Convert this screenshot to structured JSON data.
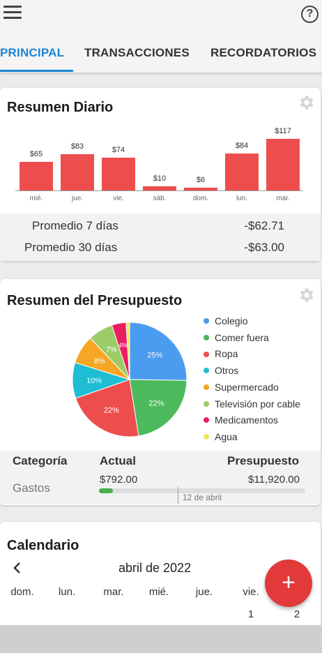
{
  "header": {
    "tabs": [
      {
        "label": "PRINCIPAL",
        "active": true
      },
      {
        "label": "TRANSACCIONES",
        "active": false
      },
      {
        "label": "RECORDATORIOS",
        "active": false
      }
    ],
    "accent_color": "#1a86d6"
  },
  "daily_summary": {
    "title": "Resumen Diario",
    "chart_data": {
      "type": "bar",
      "categories": [
        "mié.",
        "jue.",
        "vie.",
        "sáb.",
        "dom.",
        "lun.",
        "mar."
      ],
      "values": [
        65,
        83,
        74,
        10,
        6,
        84,
        117
      ],
      "value_labels": [
        "$65",
        "$83",
        "$74",
        "$10",
        "$6",
        "$84",
        "$117"
      ],
      "color": "#ee4d4d"
    },
    "averages": [
      {
        "label": "Promedio 7 días",
        "value": "-$62.71"
      },
      {
        "label": "Promedio 30 días",
        "value": "-$63.00"
      }
    ]
  },
  "budget_summary": {
    "title": "Resumen del Presupuesto",
    "chart_data": {
      "type": "pie",
      "slices": [
        {
          "name": "Colegio",
          "percent": 25,
          "label": "25%",
          "color": "#4a9cf0"
        },
        {
          "name": "Comer fuera",
          "percent": 22,
          "label": "22%",
          "color": "#4cba5c"
        },
        {
          "name": "Ropa",
          "percent": 22,
          "label": "22%",
          "color": "#ee4d4d"
        },
        {
          "name": "Otros",
          "percent": 10,
          "label": "10%",
          "color": "#1fbdd3"
        },
        {
          "name": "Supermercado",
          "percent": 8,
          "label": "8%",
          "color": "#f6a623"
        },
        {
          "name": "Televisión por cable",
          "percent": 7,
          "label": "7%",
          "color": "#9ccc65"
        },
        {
          "name": "Medicamentos",
          "percent": 4,
          "label": "4%",
          "color": "#e91e63"
        },
        {
          "name": "Agua",
          "percent": 1,
          "label": "",
          "color": "#f2e55c"
        }
      ]
    },
    "table": {
      "headers": [
        "Categoría",
        "Actual",
        "Presupuesto"
      ],
      "row": {
        "category": "Gastos",
        "actual": "$792.00",
        "budget": "$11,920.00",
        "progress_fraction": 0.066,
        "marker_label": "12 de abril"
      }
    }
  },
  "calendar": {
    "title": "Calendario",
    "month": "abril de 2022",
    "weekdays": [
      "dom.",
      "lun.",
      "mar.",
      "mié.",
      "jue.",
      "vie."
    ],
    "days": [
      "1",
      "2"
    ]
  },
  "fab": {
    "label": "+"
  }
}
